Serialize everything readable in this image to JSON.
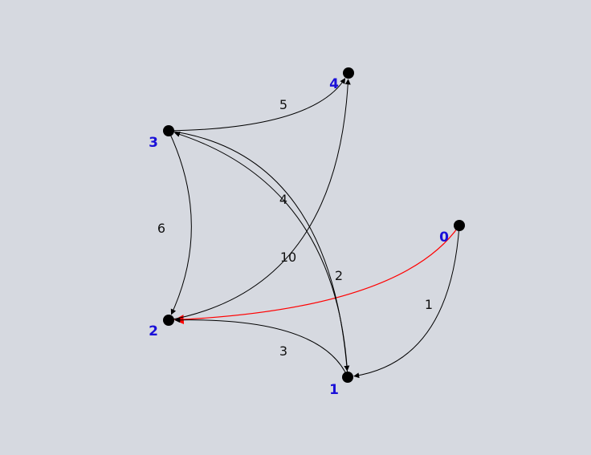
{
  "graph": {
    "directed": true,
    "background": "#d6d9e0",
    "node_color": "#000000",
    "node_label_color": "#1a10d8",
    "edge_color": "#000000",
    "highlight_color": "#ff0000",
    "nodes": [
      {
        "id": "0",
        "label": "0"
      },
      {
        "id": "1",
        "label": "1"
      },
      {
        "id": "2",
        "label": "2"
      },
      {
        "id": "3",
        "label": "3"
      },
      {
        "id": "4",
        "label": "4"
      }
    ],
    "edges": [
      {
        "from": "0",
        "to": "1",
        "weight": "1",
        "highlighted": false
      },
      {
        "from": "0",
        "to": "2",
        "weight": "",
        "highlighted": true
      },
      {
        "from": "1",
        "to": "2",
        "weight": "3",
        "highlighted": false
      },
      {
        "from": "3",
        "to": "1",
        "weight": "2",
        "highlighted": false
      },
      {
        "from": "3",
        "to": "2",
        "weight": "6",
        "highlighted": false
      },
      {
        "from": "3",
        "to": "4",
        "weight": "5",
        "highlighted": false
      },
      {
        "from": "2",
        "to": "4",
        "weight": "10",
        "highlighted": false
      },
      {
        "from": "1",
        "to": "3",
        "weight": "4",
        "highlighted": false
      }
    ]
  }
}
